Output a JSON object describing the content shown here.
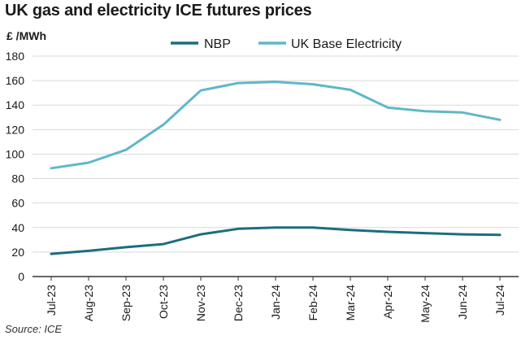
{
  "title": "UK gas and electricity ICE futures prices",
  "y_unit": "£ /MWh",
  "source": "Source: ICE",
  "colors": {
    "NBP": "#1b6e7d",
    "UK Base Electricity": "#5fb7c9",
    "grid": "#d9d9d9",
    "axis": "#333333"
  },
  "chart_data": {
    "type": "line",
    "title": "UK gas and electricity ICE futures prices",
    "ylabel": "£ /MWh",
    "xlabel": "",
    "categories": [
      "Jul-23",
      "Aug-23",
      "Sep-23",
      "Oct-23",
      "Nov-23",
      "Dec-23",
      "Jan-24",
      "Feb-24",
      "Mar-24",
      "Apr-24",
      "May-24",
      "Jun-24",
      "Jul-24"
    ],
    "ylim": [
      0,
      180
    ],
    "yticks": [
      0,
      20,
      40,
      60,
      80,
      100,
      120,
      140,
      160,
      180
    ],
    "grid": "horizontal",
    "legend": "top-center",
    "series": [
      {
        "name": "NBP",
        "values": [
          18.5,
          21,
          24,
          26.5,
          34.5,
          39,
          40,
          40,
          38,
          36.5,
          35.5,
          34.5,
          34
        ]
      },
      {
        "name": "UK Base Electricity",
        "values": [
          88.5,
          93,
          103.5,
          124,
          152,
          158,
          159,
          157,
          152.5,
          138,
          135,
          134,
          128
        ]
      }
    ]
  }
}
